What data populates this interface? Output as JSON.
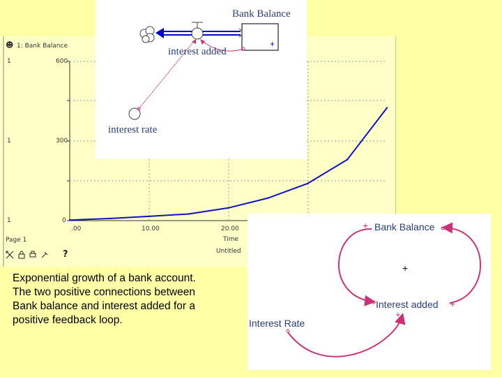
{
  "graph": {
    "icon_symbol": "☻",
    "series_title": "1: Bank Balance",
    "y_axis_labels": [
      "1",
      "1",
      "1"
    ],
    "y_ticks": [
      "600",
      "300",
      "0"
    ],
    "x_ticks": [
      ".00",
      "10.00",
      "20.00"
    ],
    "x_axis_label": "Time",
    "page_label": "Page 1",
    "untitled_label": "Untitled",
    "toolbar_help": "?",
    "colors": {
      "curve": "#1010c8",
      "grid": "#999999",
      "background": "#ffffc8"
    }
  },
  "chart_data": {
    "type": "line",
    "title": "",
    "series": [
      {
        "name": "1: Bank Balance",
        "x": [
          0,
          5,
          10,
          15,
          20,
          25,
          30,
          35,
          40
        ],
        "y": [
          2,
          8,
          16,
          25,
          48,
          85,
          140,
          230,
          425
        ]
      }
    ],
    "xlim": [
      0,
      40
    ],
    "ylim": [
      0,
      600
    ],
    "x_tick_values": [
      ".00",
      "10.00",
      "20.00"
    ],
    "y_tick_values": [
      "0",
      "300",
      "600"
    ],
    "grid": true
  },
  "stock_flow": {
    "stock_label": "Bank Balance",
    "flow_label": "interest added",
    "converter_label": "interest rate",
    "stock_sign": "+",
    "colors": {
      "flow": "#0000cc",
      "connector": "#cc3377"
    }
  },
  "caption": {
    "line1": "Exponential growth of a bank account.",
    "line2": "The two positive connections between",
    "line3": "Bank balance and interest added for a",
    "line4": "positive feedback loop."
  },
  "cld": {
    "bank_balance": "Bank Balance",
    "interest_added": "Interest added",
    "interest_rate": "Interest Rate",
    "plus_bank": "+",
    "plus_added_right": "+",
    "plus_added_below": "+",
    "loop_sign": "+",
    "colors": {
      "arrow": "#cc3377",
      "label": "#2b3d7a"
    }
  }
}
